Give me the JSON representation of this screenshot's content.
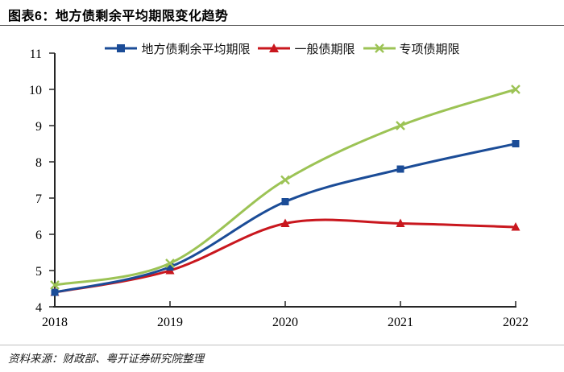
{
  "header": {
    "title": "图表6：地方债剩余平均期限变化趋势"
  },
  "footer": {
    "source": "资料来源：财政部、粤开证券研究院整理"
  },
  "chart_data": {
    "type": "line",
    "title": "地方债剩余平均期限变化趋势",
    "x": [
      2018,
      2019,
      2020,
      2021,
      2022
    ],
    "series": [
      {
        "name": "地方债剩余平均期限",
        "values": [
          4.4,
          5.1,
          6.9,
          7.8,
          8.5
        ],
        "color": "#1B4C97",
        "marker": "square"
      },
      {
        "name": "一般债期限",
        "values": [
          4.4,
          5.0,
          6.3,
          6.3,
          6.2
        ],
        "color": "#C9171E",
        "marker": "triangle"
      },
      {
        "name": "专项债期限",
        "values": [
          4.6,
          5.2,
          7.5,
          9.0,
          10.0
        ],
        "color": "#9CC355",
        "marker": "x"
      }
    ],
    "ylim": [
      4,
      11
    ],
    "yticks": [
      4,
      5,
      6,
      7,
      8,
      9,
      10,
      11
    ],
    "xlabel": "",
    "ylabel": "",
    "grid": false,
    "smooth": true,
    "legend_position": "top",
    "axis_color": "#262626",
    "draw_order": [
      1,
      0,
      2
    ]
  }
}
